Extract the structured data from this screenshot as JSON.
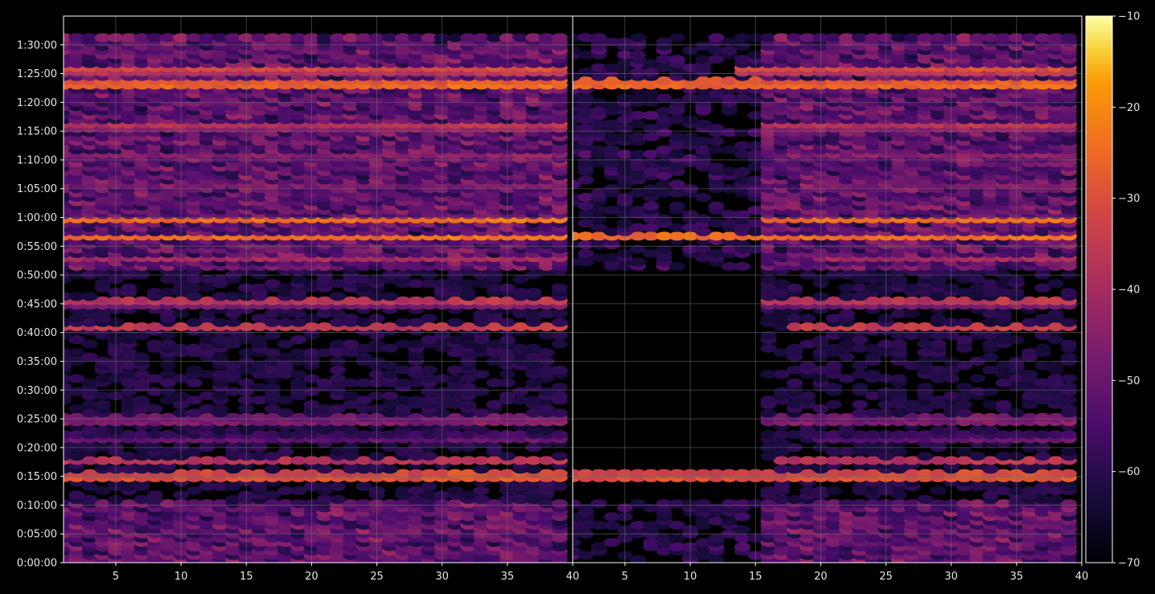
{
  "chart_data": {
    "type": "heatmap",
    "panels": [
      {
        "name": "",
        "x_range": [
          1,
          40
        ],
        "y_range": [
          0,
          5700
        ]
      },
      {
        "name": "",
        "x_range": [
          1,
          40
        ],
        "y_range": [
          0,
          5700
        ]
      }
    ],
    "x_ticks": [
      "5",
      "10",
      "15",
      "20",
      "25",
      "30",
      "35",
      "40"
    ],
    "x_tick_values": [
      5,
      10,
      15,
      20,
      25,
      30,
      35,
      40
    ],
    "y_ticks": [
      "0:00:00",
      "0:05:00",
      "0:10:00",
      "0:15:00",
      "0:20:00",
      "0:25:00",
      "0:30:00",
      "0:35:00",
      "0:40:00",
      "0:45:00",
      "0:50:00",
      "0:55:00",
      "1:00:00",
      "1:05:00",
      "1:10:00",
      "1:15:00",
      "1:20:00",
      "1:25:00",
      "1:30:00"
    ],
    "y_tick_seconds": [
      0,
      300,
      600,
      900,
      1200,
      1500,
      1800,
      2100,
      2400,
      2700,
      3000,
      3300,
      3600,
      3900,
      4200,
      4500,
      4800,
      5100,
      5400
    ],
    "colorbar": {
      "min": -70,
      "max": -10,
      "ticks": [
        "−10",
        "−20",
        "−30",
        "−40",
        "−50",
        "−60",
        "−70"
      ],
      "tick_values": [
        -10,
        -20,
        -30,
        -40,
        -50,
        -60,
        -70
      ],
      "colormap": "inferno"
    },
    "grid": true,
    "strong_bands": [
      {
        "time_s": 5000,
        "level": -14,
        "panel2_from_x": 1
      },
      {
        "time_s": 5145,
        "level": -22,
        "panel2_from_x": 14
      },
      {
        "time_s": 4560,
        "level": -28,
        "panel2_from_x": 16
      },
      {
        "time_s": 3585,
        "level": -22,
        "panel2_from_x": 16
      },
      {
        "time_s": 3410,
        "level": -20,
        "panel2_from_x": 1
      },
      {
        "time_s": 2720,
        "level": -30,
        "panel2_from_x": 16
      },
      {
        "time_s": 2455,
        "level": -30,
        "panel2_from_x": 18
      },
      {
        "time_s": 1490,
        "level": -35,
        "panel2_from_x": 16
      },
      {
        "time_s": 1065,
        "level": -35,
        "panel2_from_x": 17
      },
      {
        "time_s": 905,
        "level": -18,
        "panel2_from_x": 1
      },
      {
        "time_s": 4250,
        "level": -38,
        "panel2_from_x": 18
      },
      {
        "time_s": 3935,
        "level": -40,
        "panel2_from_x": 20
      },
      {
        "time_s": 3180,
        "level": -38,
        "panel2_from_x": 20
      },
      {
        "time_s": 1305,
        "level": -42,
        "panel2_from_x": 20
      }
    ],
    "high_activity_periods_s": [
      [
        3060,
        5500
      ],
      [
        0,
        620
      ]
    ],
    "colors": {
      "background": "#000000",
      "frame": "#ffffff",
      "grid": "#6e6e6e",
      "text": "#e6e6e6"
    }
  }
}
